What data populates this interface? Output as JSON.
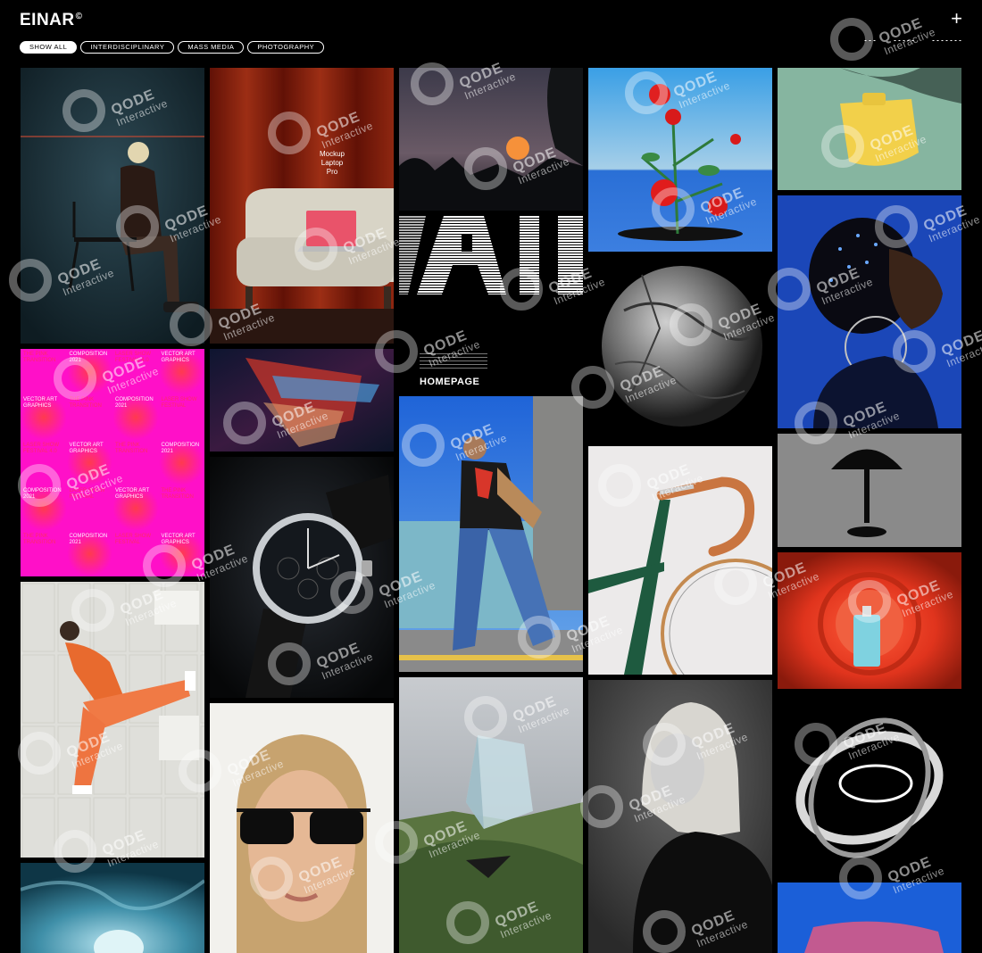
{
  "header": {
    "logo": "EINAR",
    "logo_mark": "©",
    "filters": [
      "SHOW ALL",
      "INTERDISCIPLINARY",
      "MASS MEDIA",
      "PHOTOGRAPHY"
    ],
    "active_filter": "SHOW ALL",
    "menu_icon": "plus-icon",
    "dot_controls": [
      "grid-small-icon",
      "grid-medium-icon",
      "grid-large-icon"
    ]
  },
  "featured": {
    "title": "HOMEPAGE"
  },
  "mockup": {
    "line1": "Mockup",
    "line2": "Laptop",
    "line3": "Pro"
  },
  "watermark": {
    "brand": "QODE",
    "sub": "Interactive"
  },
  "poster_cells": [
    "THE PINK TRANSITION",
    "COMPOSITION 2021",
    "LASER SHOW FESTIVAL 4.0",
    "VECTOR ART GRAPHICS",
    "VECTOR ART GRAPHICS",
    "THE PINK TRANSITION",
    "COMPOSITION 2021",
    "LASER SHOW FESTIVAL",
    "LASER SHOW FESTIVAL 4.0",
    "VECTOR ART GRAPHICS",
    "THE PINK TRANSITION",
    "COMPOSITION 2021",
    "COMPOSITION 2021",
    "LASER SHOW FESTIVAL",
    "VECTOR ART GRAPHICS",
    "THE PINK TRANSITION",
    "THE PINK TRANSITION",
    "COMPOSITION 2021",
    "LASER SHOW FESTIVAL",
    "VECTOR ART GRAPHICS"
  ],
  "colors": {
    "background": "#000000",
    "poster_pink": "#ff10c8",
    "tile_blue": "#1b5fd8",
    "tile_red": "#e8452a"
  }
}
